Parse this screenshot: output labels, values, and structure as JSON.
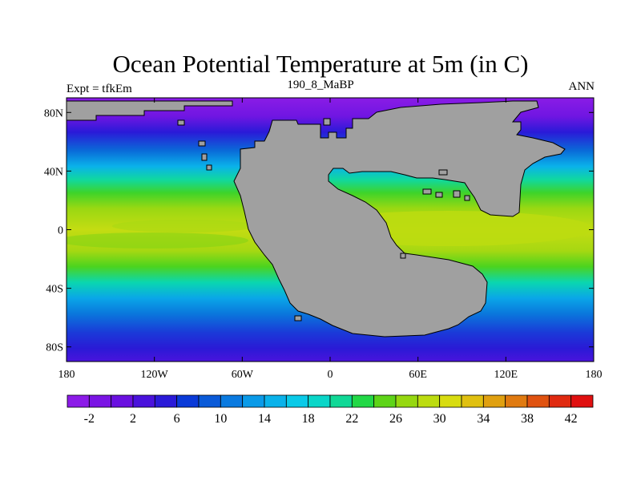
{
  "map": {
    "title": "Ocean Potential Temperature at 5m (in C)",
    "left_label": "Expt = tfkEm",
    "center_label": "190_8_MaBP",
    "right_label": "ANN",
    "x_ticks": [
      {
        "lon": -180,
        "label": "180"
      },
      {
        "lon": -120,
        "label": "120W"
      },
      {
        "lon": -60,
        "label": "60W"
      },
      {
        "lon": 0,
        "label": "0"
      },
      {
        "lon": 60,
        "label": "60E"
      },
      {
        "lon": 120,
        "label": "120E"
      },
      {
        "lon": 180,
        "label": "180"
      }
    ],
    "y_ticks": [
      {
        "lat": 80,
        "label": "80N"
      },
      {
        "lat": 40,
        "label": "40N"
      },
      {
        "lat": 0,
        "label": "0"
      },
      {
        "lat": -40,
        "label": "40S"
      },
      {
        "lat": -80,
        "label": "80S"
      }
    ],
    "land_color": "#a0a0a0"
  },
  "colorbar": {
    "labels": [
      "-2",
      "2",
      "6",
      "10",
      "14",
      "18",
      "22",
      "26",
      "30",
      "34",
      "38",
      "42"
    ],
    "colors": [
      "#8c1be8",
      "#7a14e4",
      "#6a10e0",
      "#4a12dc",
      "#2a1ad8",
      "#0a3ad8",
      "#0a5ad8",
      "#0a7ae0",
      "#0a9ae8",
      "#0ab2ea",
      "#0acae8",
      "#0ad6c8",
      "#10d896",
      "#22d846",
      "#5ed418",
      "#96d810",
      "#bcdc10",
      "#d8dc10",
      "#e0c010",
      "#e0a010",
      "#e07a10",
      "#e05210",
      "#e02a10",
      "#e01010"
    ]
  }
}
